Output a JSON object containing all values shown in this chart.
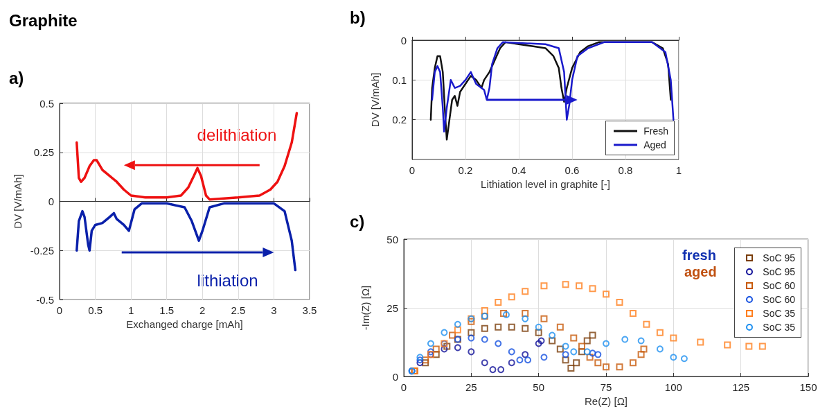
{
  "chart_data": [
    {
      "type": "line",
      "title": "Graphite",
      "subtitle": "a)",
      "xlabel": "Exchanged charge [mAh]",
      "ylabel": "DV [V/mAh]",
      "xlim": [
        0,
        3.5
      ],
      "xticks": [
        0,
        0.5,
        1,
        1.5,
        2,
        2.5,
        3,
        3.5
      ],
      "ylim": [
        -0.5,
        0.5
      ],
      "yticks": [
        -0.5,
        -0.25,
        0,
        0.25,
        0.5
      ],
      "grid": true,
      "legend": "bottom",
      "marker": "none",
      "line_style": "solid",
      "series": [
        {
          "name": "delithiation",
          "color": "#ee1111",
          "x": [
            0.24,
            0.27,
            0.3,
            0.35,
            0.42,
            0.48,
            0.52,
            0.6,
            0.7,
            0.8,
            0.9,
            1.0,
            1.2,
            1.5,
            1.7,
            1.8,
            1.88,
            1.93,
            1.98,
            2.05,
            2.1,
            2.5,
            2.8,
            2.95,
            3.05,
            3.15,
            3.25,
            3.32
          ],
          "values": [
            0.3,
            0.12,
            0.1,
            0.12,
            0.18,
            0.21,
            0.21,
            0.16,
            0.13,
            0.1,
            0.06,
            0.03,
            0.02,
            0.02,
            0.03,
            0.07,
            0.13,
            0.17,
            0.13,
            0.03,
            0.01,
            0.02,
            0.03,
            0.06,
            0.1,
            0.18,
            0.3,
            0.45
          ]
        },
        {
          "name": "lithiation",
          "color": "#0a20aa",
          "x": [
            0.24,
            0.27,
            0.32,
            0.35,
            0.4,
            0.42,
            0.45,
            0.5,
            0.6,
            0.7,
            0.76,
            0.8,
            0.9,
            0.97,
            1.05,
            1.15,
            1.5,
            1.75,
            1.85,
            1.95,
            2.0,
            2.1,
            2.3,
            3.0,
            3.15,
            3.25,
            3.3
          ],
          "values": [
            -0.25,
            -0.1,
            -0.05,
            -0.08,
            -0.22,
            -0.25,
            -0.15,
            -0.12,
            -0.11,
            -0.08,
            -0.06,
            -0.09,
            -0.12,
            -0.15,
            -0.04,
            -0.01,
            -0.01,
            -0.03,
            -0.1,
            -0.2,
            -0.15,
            -0.03,
            -0.01,
            -0.01,
            -0.05,
            -0.2,
            -0.35
          ]
        }
      ]
    },
    {
      "type": "line",
      "title": "b)",
      "xlabel": "Lithiation level in graphite [-]",
      "ylabel": "DV [V/mAh]",
      "xlim": [
        0,
        1
      ],
      "xticks": [
        0,
        0.2,
        0.4,
        0.6,
        0.8,
        1
      ],
      "ylim": [
        0.3,
        0
      ],
      "yticks": [
        0,
        0.1,
        0.2
      ],
      "grid": true,
      "legend": "bottom right",
      "marker": "none",
      "line_style": "solid",
      "series": [
        {
          "name": "Fresh",
          "color": "#111111",
          "x": [
            0.07,
            0.075,
            0.085,
            0.095,
            0.105,
            0.115,
            0.125,
            0.13,
            0.14,
            0.15,
            0.16,
            0.17,
            0.18,
            0.2,
            0.22,
            0.24,
            0.26,
            0.27,
            0.29,
            0.31,
            0.33,
            0.35,
            0.4,
            0.45,
            0.5,
            0.53,
            0.55,
            0.56,
            0.57,
            0.58,
            0.6,
            0.63,
            0.66,
            0.7,
            0.8,
            0.9,
            0.94,
            0.96,
            0.97
          ],
          "values": [
            0.2,
            0.12,
            0.07,
            0.04,
            0.04,
            0.08,
            0.2,
            0.25,
            0.2,
            0.15,
            0.14,
            0.165,
            0.13,
            0.11,
            0.09,
            0.1,
            0.12,
            0.1,
            0.08,
            0.05,
            0.02,
            0.005,
            0.01,
            0.015,
            0.02,
            0.04,
            0.07,
            0.12,
            0.155,
            0.12,
            0.07,
            0.03,
            0.015,
            0.005,
            0.005,
            0.005,
            0.02,
            0.06,
            0.15
          ]
        },
        {
          "name": "Aged",
          "color": "#1a1acc",
          "x": [
            0.075,
            0.085,
            0.095,
            0.105,
            0.115,
            0.12,
            0.13,
            0.145,
            0.16,
            0.18,
            0.2,
            0.22,
            0.24,
            0.27,
            0.28,
            0.29,
            0.3,
            0.32,
            0.34,
            0.5,
            0.55,
            0.57,
            0.58,
            0.59,
            0.6,
            0.62,
            0.66,
            0.72,
            0.9,
            0.95,
            0.97,
            0.98
          ],
          "values": [
            0.15,
            0.08,
            0.065,
            0.08,
            0.17,
            0.23,
            0.17,
            0.1,
            0.12,
            0.115,
            0.1,
            0.08,
            0.11,
            0.125,
            0.15,
            0.12,
            0.06,
            0.02,
            0.005,
            0.01,
            0.02,
            0.08,
            0.2,
            0.16,
            0.1,
            0.04,
            0.02,
            0.005,
            0.005,
            0.03,
            0.1,
            0.2
          ]
        }
      ]
    },
    {
      "type": "scatter",
      "title": "c)",
      "xlabel": "Re(Z) [Ω]",
      "ylabel": "-Im(Z) [Ω]",
      "xlim": [
        0,
        150
      ],
      "xticks": [
        0,
        25,
        50,
        75,
        100,
        125,
        150
      ],
      "ylim": [
        0,
        50
      ],
      "yticks": [
        0,
        25,
        50
      ],
      "grid": true,
      "legend": "top right",
      "annotations": [
        "fresh",
        "aged"
      ],
      "series": [
        {
          "name": "SoC 95",
          "color": "#7a3d0a",
          "marker": "square",
          "x": [
            4,
            8,
            12,
            16,
            20,
            25,
            30,
            35,
            40,
            45,
            50,
            55,
            58,
            60,
            62,
            64,
            66,
            68,
            70
          ],
          "values": [
            2,
            5,
            8,
            11,
            13.5,
            16,
            17.5,
            18,
            18,
            17.5,
            16,
            13,
            10,
            6,
            3,
            5,
            9,
            13,
            15
          ]
        },
        {
          "name": "SoC 95",
          "color": "#111199",
          "marker": "circle",
          "x": [
            3,
            6,
            10,
            15,
            20,
            25,
            30,
            33,
            36,
            40,
            45,
            50,
            51
          ],
          "values": [
            2,
            5,
            8,
            10,
            10.5,
            9,
            5,
            2.5,
            2.5,
            5,
            8,
            12,
            13
          ]
        },
        {
          "name": "SoC 60",
          "color": "#c85a0a",
          "marker": "square",
          "x": [
            4,
            8,
            12,
            18,
            25,
            30,
            37,
            45,
            52,
            58,
            63,
            66,
            69,
            72,
            75,
            80,
            85,
            88,
            89
          ],
          "values": [
            2,
            6,
            10,
            15,
            20,
            22,
            23,
            23,
            21,
            18,
            14,
            11,
            7,
            5,
            3.5,
            3.5,
            5,
            8,
            10
          ]
        },
        {
          "name": "SoC 60",
          "color": "#1450e0",
          "marker": "circle",
          "x": [
            3,
            6,
            10,
            15,
            20,
            25,
            30,
            35,
            40,
            43,
            46,
            52,
            60,
            70,
            72
          ],
          "values": [
            2,
            6,
            9,
            12,
            13.5,
            14,
            13.5,
            12,
            9,
            6,
            6,
            7,
            8,
            8.5,
            8
          ]
        },
        {
          "name": "SoC 35",
          "color": "#ff7f1e",
          "marker": "square",
          "x": [
            4,
            10,
            15,
            20,
            25,
            30,
            35,
            40,
            45,
            52,
            60,
            65,
            70,
            75,
            80,
            85,
            90,
            95,
            100,
            110,
            120,
            128,
            133
          ],
          "values": [
            2,
            8,
            12,
            17,
            21,
            24,
            27,
            29,
            31,
            33,
            33.5,
            33,
            32,
            30,
            27,
            23,
            19,
            16,
            14,
            12.5,
            11.5,
            11,
            11
          ]
        },
        {
          "name": "SoC 35",
          "color": "#1e90f0",
          "marker": "circle",
          "x": [
            3,
            6,
            10,
            15,
            20,
            25,
            30,
            38,
            45,
            50,
            55,
            60,
            63,
            68,
            75,
            82,
            88,
            95,
            100,
            104
          ],
          "values": [
            2,
            7,
            12,
            16,
            19,
            21,
            22,
            22.5,
            21,
            18,
            15,
            11,
            9,
            9,
            12,
            13.5,
            13,
            10,
            7,
            6.5
          ]
        }
      ]
    }
  ]
}
